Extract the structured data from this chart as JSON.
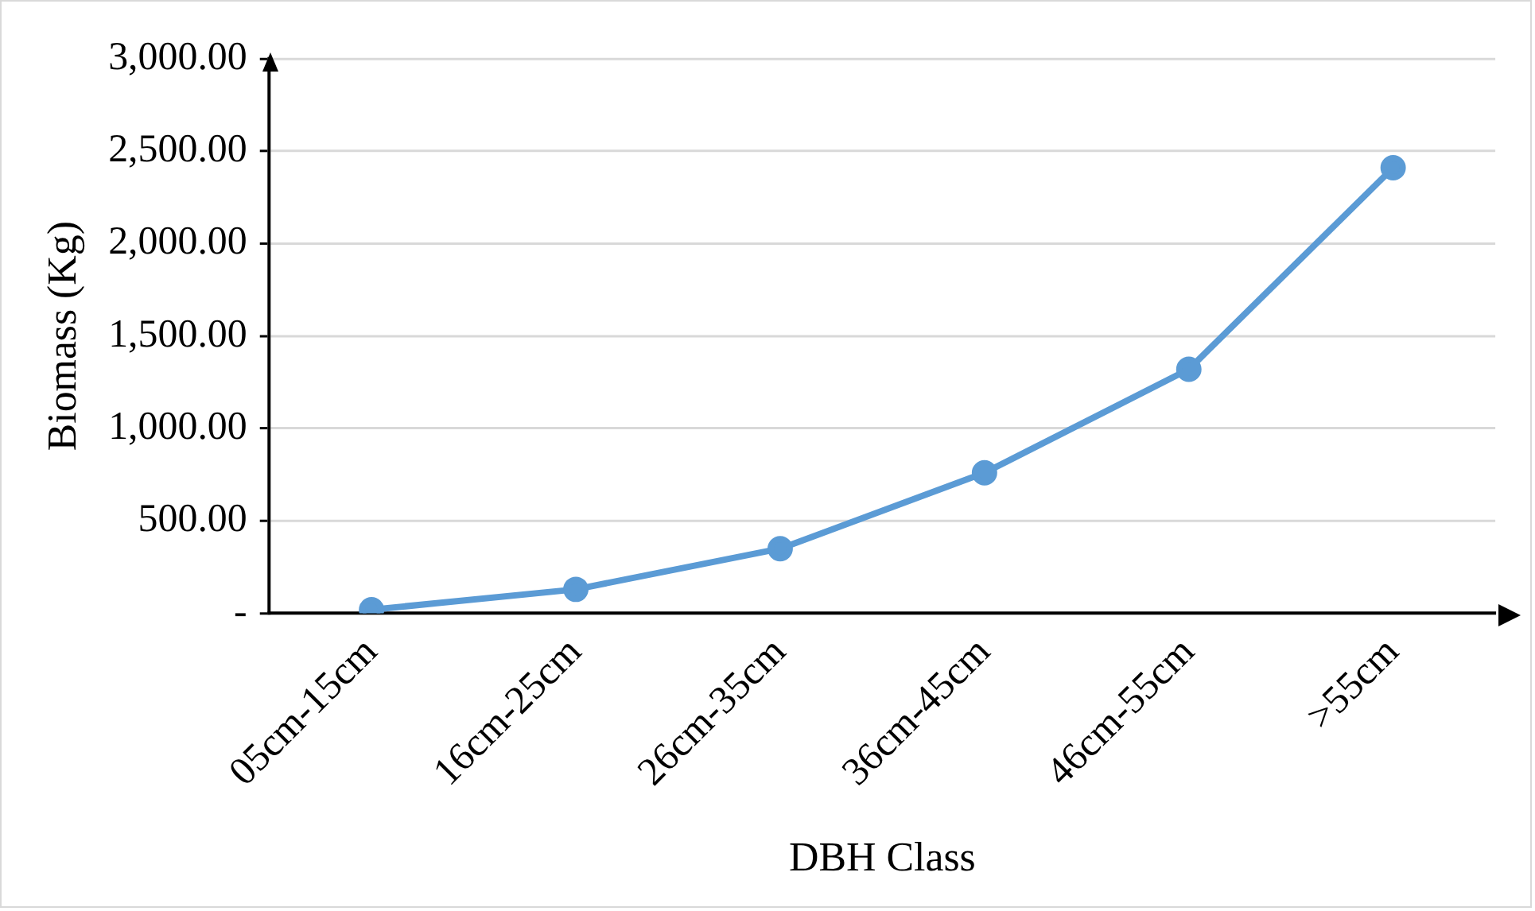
{
  "chart_data": {
    "type": "line",
    "xlabel": "DBH Class",
    "ylabel": "Biomass (Kg)",
    "categories": [
      "05cm-15cm",
      "16cm-25cm",
      "26cm-35cm",
      "36cm-45cm",
      "46cm-55cm",
      ">55cm"
    ],
    "series": [
      {
        "color": "#5b9bd5",
        "values": [
          20,
          130,
          350,
          760,
          1320,
          2410
        ]
      }
    ],
    "ylim": [
      0,
      3000
    ],
    "yticks": [
      {
        "value": 0,
        "label": "-"
      },
      {
        "value": 500,
        "label": "500.00"
      },
      {
        "value": 1000,
        "label": "1,000.00"
      },
      {
        "value": 1500,
        "label": "1,500.00"
      },
      {
        "value": 2000,
        "label": "2,000.00"
      },
      {
        "value": 2500,
        "label": "2,500.00"
      },
      {
        "value": 3000,
        "label": "3,000.00"
      }
    ],
    "grid": "y",
    "legend": false,
    "marker": "circle",
    "line_style": "solid"
  }
}
